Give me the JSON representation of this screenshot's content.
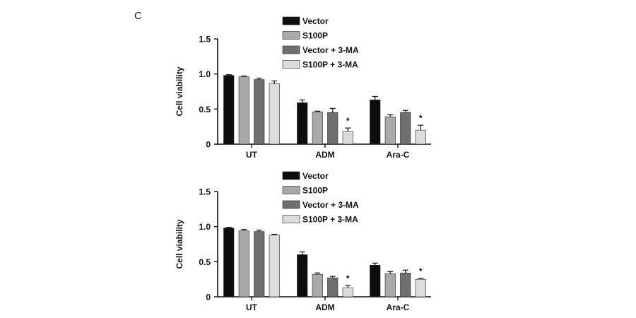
{
  "panel_label": "C",
  "colors": {
    "Vector": "#0d0d0d",
    "S100P": "#a9a9a9",
    "Vector + 3-MA": "#6f6f6f",
    "S100P + 3-MA": "#dcdcdc",
    "axis": "#111111"
  },
  "chart_data": [
    {
      "type": "bar",
      "title": "",
      "xlabel": "",
      "ylabel": "Cell viability",
      "ylim": [
        0,
        1.5
      ],
      "yticks": [
        "0",
        "0.5",
        "1.0",
        "1.5"
      ],
      "categories": [
        "UT",
        "ADM",
        "Ara-C"
      ],
      "legend_position": "top-center",
      "series": [
        {
          "name": "Vector",
          "values": [
            0.98,
            0.59,
            0.63
          ],
          "errors": [
            0.01,
            0.04,
            0.05
          ]
        },
        {
          "name": "S100P",
          "values": [
            0.96,
            0.46,
            0.39
          ],
          "errors": [
            0.01,
            0.01,
            0.03
          ]
        },
        {
          "name": "Vector + 3-MA",
          "values": [
            0.92,
            0.45,
            0.45
          ],
          "errors": [
            0.02,
            0.06,
            0.03
          ]
        },
        {
          "name": "S100P + 3-MA",
          "values": [
            0.86,
            0.18,
            0.2
          ],
          "errors": [
            0.04,
            0.05,
            0.07
          ]
        }
      ],
      "annotations": [
        {
          "category": "ADM",
          "series": "S100P + 3-MA",
          "text": "*"
        },
        {
          "category": "Ara-C",
          "series": "S100P + 3-MA",
          "text": "*"
        }
      ]
    },
    {
      "type": "bar",
      "title": "",
      "xlabel": "",
      "ylabel": "Cell viability",
      "ylim": [
        0,
        1.5
      ],
      "yticks": [
        "0",
        "0.5",
        "1.0",
        "1.5"
      ],
      "categories": [
        "UT",
        "ADM",
        "Ara-C"
      ],
      "legend_position": "top-center",
      "series": [
        {
          "name": "Vector",
          "values": [
            0.98,
            0.6,
            0.45
          ],
          "errors": [
            0.01,
            0.04,
            0.03
          ]
        },
        {
          "name": "S100P",
          "values": [
            0.94,
            0.32,
            0.33
          ],
          "errors": [
            0.02,
            0.02,
            0.03
          ]
        },
        {
          "name": "Vector + 3-MA",
          "values": [
            0.93,
            0.27,
            0.34
          ],
          "errors": [
            0.02,
            0.02,
            0.04
          ]
        },
        {
          "name": "S100P + 3-MA",
          "values": [
            0.88,
            0.13,
            0.25
          ],
          "errors": [
            0.01,
            0.03,
            0.01
          ]
        }
      ],
      "annotations": [
        {
          "category": "ADM",
          "series": "S100P + 3-MA",
          "text": "*"
        },
        {
          "category": "Ara-C",
          "series": "S100P + 3-MA",
          "text": "*"
        }
      ]
    }
  ]
}
